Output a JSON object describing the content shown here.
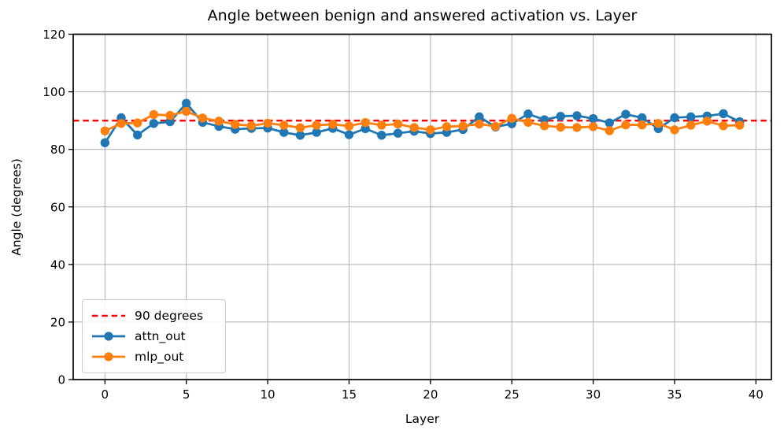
{
  "chart_data": {
    "type": "line",
    "title": "Angle between benign and answered activation vs. Layer",
    "xlabel": "Layer",
    "ylabel": "Angle (degrees)",
    "xlim": [
      -1.95,
      40.95
    ],
    "ylim": [
      0,
      120
    ],
    "x_ticks": [
      0,
      5,
      10,
      15,
      20,
      25,
      30,
      35,
      40
    ],
    "y_ticks": [
      0,
      20,
      40,
      60,
      80,
      100,
      120
    ],
    "grid": true,
    "grid_color": "#b0b0b0",
    "spine_color": "#000000",
    "legend_position": "lower left",
    "reference_line": {
      "label": "90 degrees",
      "y": 90,
      "color": "#ff0000",
      "style": "dashed"
    },
    "x": [
      0,
      1,
      2,
      3,
      4,
      5,
      6,
      7,
      8,
      9,
      10,
      11,
      12,
      13,
      14,
      15,
      16,
      17,
      18,
      19,
      20,
      21,
      22,
      23,
      24,
      25,
      26,
      27,
      28,
      29,
      30,
      31,
      32,
      33,
      34,
      35,
      36,
      37,
      38,
      39
    ],
    "series": [
      {
        "name": "attn_out",
        "color": "#1f77b4",
        "marker": "circle",
        "values": [
          82.3,
          91.0,
          85.0,
          89.0,
          89.6,
          96.0,
          89.4,
          88.0,
          87.0,
          87.3,
          87.4,
          85.9,
          84.9,
          85.9,
          87.3,
          85.1,
          87.2,
          84.9,
          85.6,
          86.3,
          85.5,
          85.9,
          86.9,
          91.3,
          87.8,
          88.9,
          92.3,
          90.3,
          91.5,
          91.7,
          90.7,
          89.2,
          92.2,
          91.0,
          87.2,
          91.0,
          91.3,
          91.6,
          92.4,
          89.6
        ]
      },
      {
        "name": "mlp_out",
        "color": "#ff7f0e",
        "marker": "circle",
        "values": [
          86.4,
          89.0,
          89.2,
          92.1,
          91.8,
          93.2,
          90.9,
          89.8,
          88.7,
          88.2,
          89.1,
          88.4,
          87.5,
          88.4,
          88.7,
          88.1,
          89.3,
          88.4,
          88.8,
          87.6,
          86.8,
          87.9,
          88.1,
          88.8,
          88.0,
          90.8,
          89.4,
          88.2,
          87.7,
          87.6,
          87.9,
          86.5,
          88.5,
          88.5,
          89.0,
          86.8,
          88.4,
          89.8,
          88.2,
          88.4
        ]
      }
    ]
  }
}
